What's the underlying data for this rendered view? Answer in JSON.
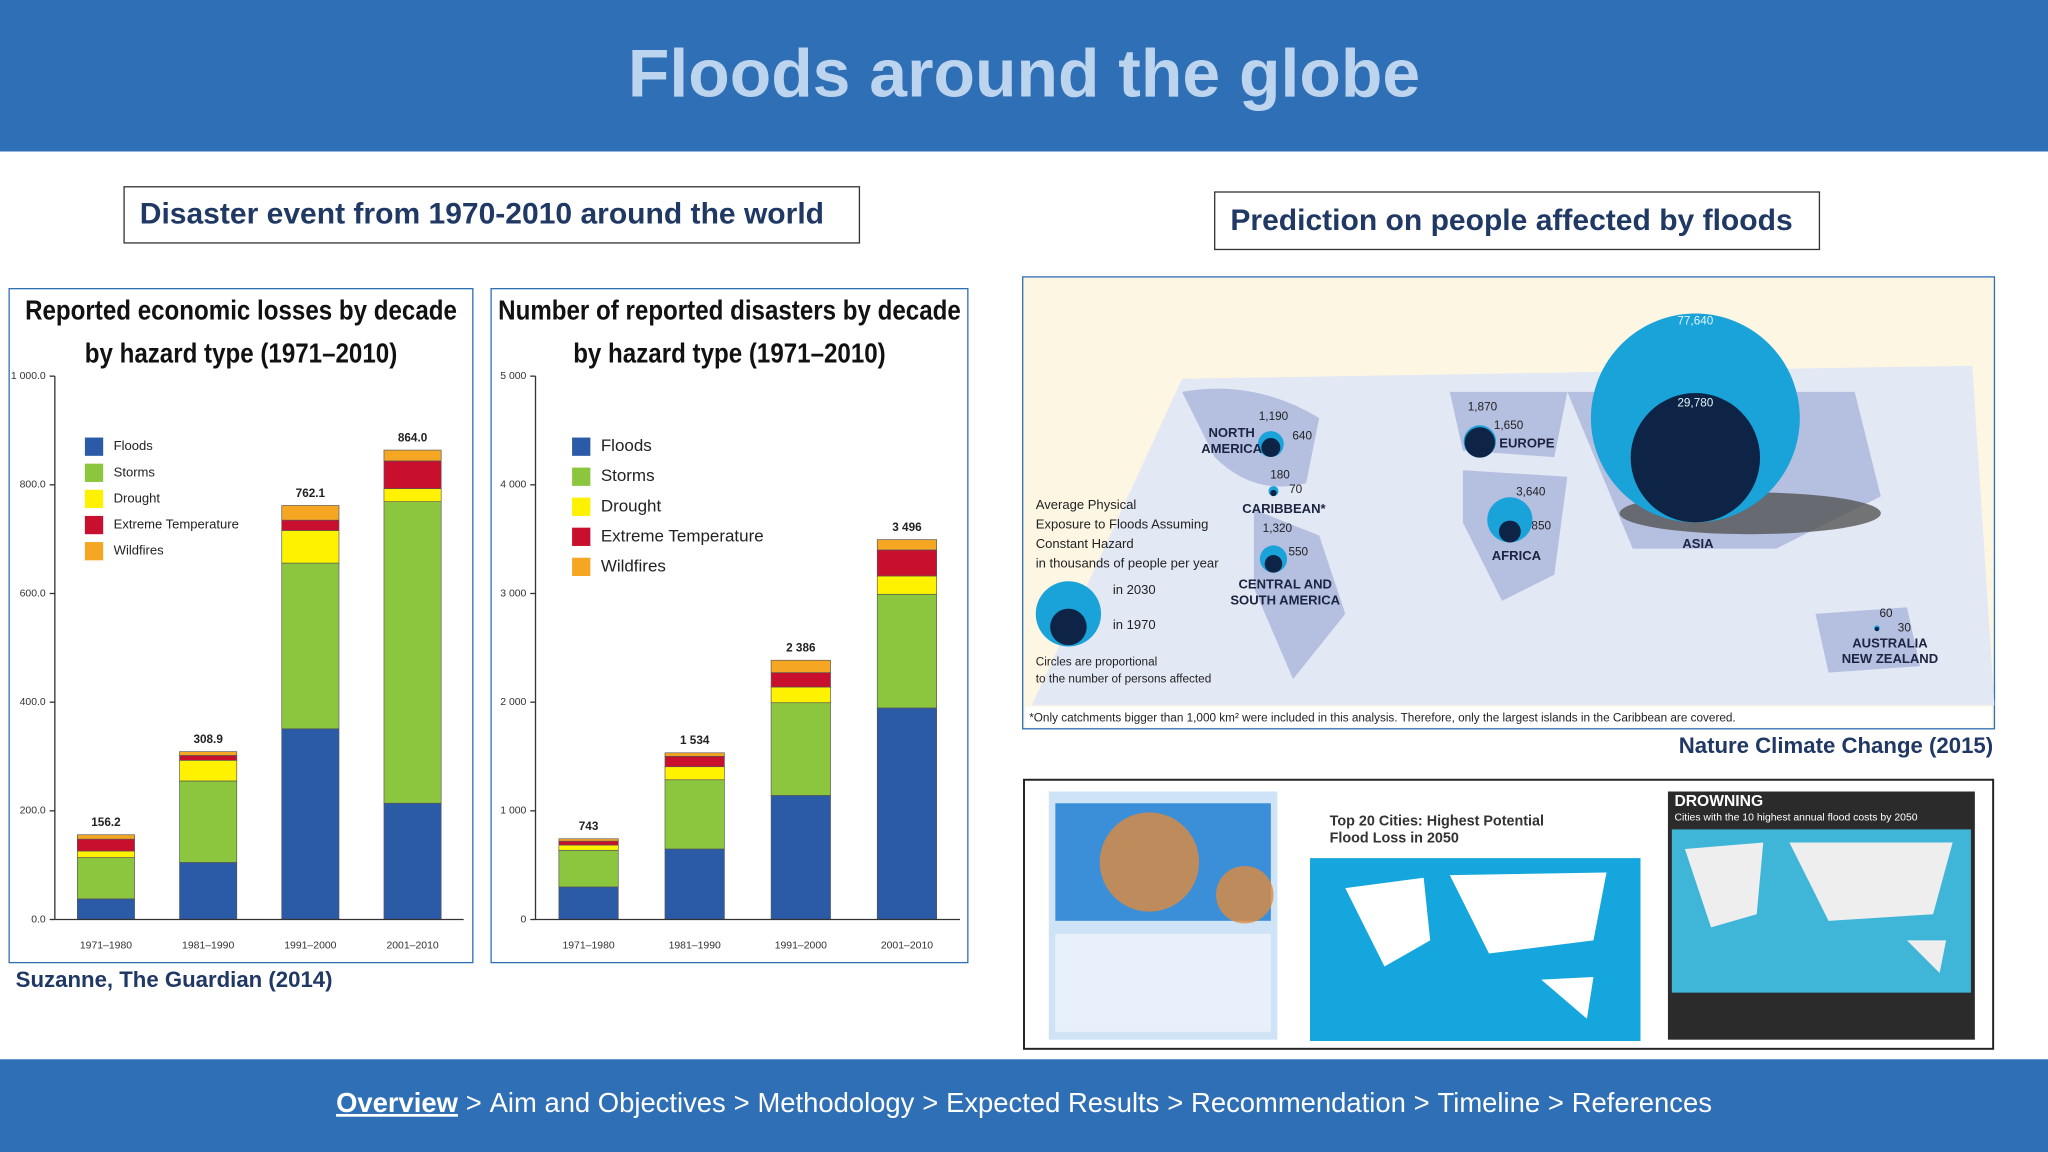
{
  "header": {
    "title": "Floods around the globe"
  },
  "left_panel": {
    "heading": "Disaster event from 1970-2010 around the world",
    "source": "Suzanne, The Guardian (2014)"
  },
  "chart_data": [
    {
      "type": "stacked_bar",
      "title": [
        "Reported economic losses by decade",
        "by hazard type (1971–2010)"
      ],
      "categories": [
        "1971–1980",
        "1981–1990",
        "1991–2000",
        "2001–2010"
      ],
      "series": [
        {
          "name": "Floods",
          "color": "#2b5aa6",
          "values": [
            38,
            105,
            351,
            214
          ]
        },
        {
          "name": "Storms",
          "color": "#8cc63f",
          "values": [
            76,
            150,
            305,
            555
          ]
        },
        {
          "name": "Drought",
          "color": "#fff200",
          "values": [
            12,
            38,
            60,
            24
          ]
        },
        {
          "name": "Extreme Temperature",
          "color": "#c8102e",
          "values": [
            22,
            9,
            19,
            51
          ]
        },
        {
          "name": "Wildfires",
          "color": "#f5a623",
          "values": [
            8,
            7,
            27,
            20
          ]
        }
      ],
      "totals": [
        156.2,
        308.9,
        762.1,
        864.0
      ],
      "total_labels": [
        "156.2",
        "308.9",
        "762.1",
        "864.0"
      ],
      "ylim": [
        0,
        1000
      ],
      "yticks": [
        {
          "value": 0,
          "label": "0.0"
        },
        {
          "value": 200,
          "label": "200.0"
        },
        {
          "value": 400,
          "label": "400.0"
        },
        {
          "value": 600,
          "label": "600.0"
        },
        {
          "value": 800,
          "label": "800.0"
        },
        {
          "value": 1000,
          "label": "1 000.0"
        }
      ]
    },
    {
      "type": "stacked_bar",
      "title": [
        "Number of reported disasters by decade",
        "by hazard type (1971–2010)"
      ],
      "categories": [
        "1971–1980",
        "1981–1990",
        "1991–2000",
        "2001–2010"
      ],
      "series": [
        {
          "name": "Floods",
          "color": "#2b5aa6",
          "values": [
            300,
            649,
            1142,
            1947
          ]
        },
        {
          "name": "Storms",
          "color": "#8cc63f",
          "values": [
            337,
            637,
            853,
            1046
          ]
        },
        {
          "name": "Drought",
          "color": "#fff200",
          "values": [
            48,
            120,
            144,
            168
          ]
        },
        {
          "name": "Extreme Temperature",
          "color": "#c8102e",
          "values": [
            36,
            96,
            133,
            240
          ]
        },
        {
          "name": "Wildfires",
          "color": "#f5a623",
          "values": [
            22,
            32,
            114,
            95
          ]
        }
      ],
      "totals": [
        743,
        1534,
        2386,
        3496
      ],
      "total_labels": [
        "743",
        "1 534",
        "2 386",
        "3 496"
      ],
      "ylim": [
        0,
        5000
      ],
      "yticks": [
        0,
        {
          "value": 1000,
          "label": "1 000"
        },
        {
          "value": 2000,
          "label": "2 000"
        },
        {
          "value": 3000,
          "label": "3 000"
        },
        {
          "value": 4000,
          "label": "4 000"
        },
        {
          "value": 5000,
          "label": "5 000"
        }
      ]
    }
  ],
  "right_panel": {
    "heading": "Prediction on people affected by floods",
    "source": "Nature Climate Change (2015)",
    "map": {
      "legend_title": [
        "Average Physical",
        "Exposure to Floods Assuming",
        "Constant Hazard",
        "in thousands of people per year"
      ],
      "legend_2030": "in 2030",
      "legend_1970": "in 1970",
      "legend_note": [
        "Circles are proportional",
        "to the number of persons affected"
      ],
      "footnote": "*Only catchments bigger than 1,000 km² were included in this analysis. Therefore, only the largest islands in the Caribbean are covered.",
      "regions": [
        {
          "name": [
            "NORTH",
            "AMERICA"
          ],
          "in_2030": {
            "value": 1190,
            "label": "1,190"
          },
          "in_1970": 640
        },
        {
          "name": [
            "CARIBBEAN*"
          ],
          "in_2030": 180,
          "in_1970": 70
        },
        {
          "name": [
            "CENTRAL AND",
            "SOUTH AMERICA"
          ],
          "in_2030": {
            "value": 1320,
            "label": "1,320"
          },
          "in_1970": 550
        },
        {
          "name": [
            "EUROPE"
          ],
          "in_2030": {
            "value": 1870,
            "label": "1,870"
          },
          "in_1970": {
            "value": 1650,
            "label": "1,650"
          }
        },
        {
          "name": [
            "AFRICA"
          ],
          "in_2030": {
            "value": 3640,
            "label": "3,640"
          },
          "in_1970": 850
        },
        {
          "name": [
            "ASIA"
          ],
          "in_2030": {
            "value": 77640,
            "label": "77,640"
          },
          "in_1970": {
            "value": 29780,
            "label": "29,780"
          }
        },
        {
          "name": [
            "AUSTRALIA",
            "NEW ZEALAND"
          ],
          "in_2030": 60,
          "in_1970": 30
        }
      ]
    },
    "thumbnails": [
      {
        "title": [
          "Top 20 Cities: Highest Potential",
          "Flood Loss in 2050"
        ]
      },
      {
        "title": [
          "DROWNING"
        ],
        "subtitle": "Cities with the 10 highest annual flood costs by 2050"
      }
    ]
  },
  "nav": {
    "items": [
      "Overview",
      "Aim and Objectives",
      "Methodology",
      "Expected Results",
      "Recommendation",
      "Timeline",
      "References"
    ],
    "separator": ">"
  }
}
